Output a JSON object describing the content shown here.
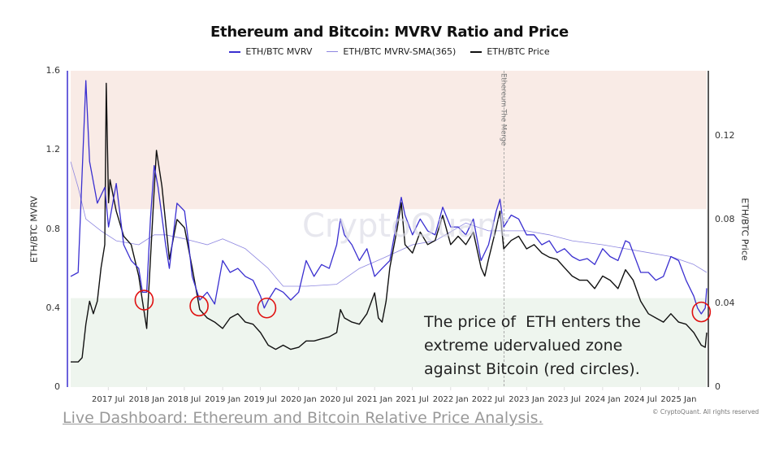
{
  "chart_data": {
    "type": "line",
    "title": "Ethereum and Bitcoin: MVRV Ratio and Price",
    "ylabel": "ETH/BTC MVRV",
    "y2label": "ETH/BTC Price",
    "ylim": [
      0,
      1.6
    ],
    "y2lim": [
      0,
      0.151
    ],
    "xlim": [
      "2017-01-01",
      "2025-05-16"
    ],
    "yticks": [
      "1.6",
      "1.2",
      "0.8",
      "0.4",
      "0"
    ],
    "y2ticks": [
      "0.12",
      "0.08",
      "0.04",
      "0"
    ],
    "xticks": [
      {
        "label": "2017 Jul",
        "date": "2017-07-01"
      },
      {
        "label": "2018 Jan",
        "date": "2018-01-01"
      },
      {
        "label": "2018 Jul",
        "date": "2018-07-01"
      },
      {
        "label": "2019 Jan",
        "date": "2019-01-01"
      },
      {
        "label": "2019 Jul",
        "date": "2019-07-01"
      },
      {
        "label": "2020 Jan",
        "date": "2020-01-01"
      },
      {
        "label": "2020 Jul",
        "date": "2020-07-01"
      },
      {
        "label": "2021 Jan",
        "date": "2021-01-01"
      },
      {
        "label": "2021 Jul",
        "date": "2021-07-01"
      },
      {
        "label": "2022 Jan",
        "date": "2022-01-01"
      },
      {
        "label": "2022 Jul",
        "date": "2022-07-01"
      },
      {
        "label": "2023 Jan",
        "date": "2023-01-01"
      },
      {
        "label": "2023 Jul",
        "date": "2023-07-01"
      },
      {
        "label": "2024 Jan",
        "date": "2024-01-01"
      },
      {
        "label": "2024 Jul",
        "date": "2024-07-01"
      },
      {
        "label": "2025 Jan",
        "date": "2025-01-01"
      }
    ],
    "grid": false,
    "legend_position": "top",
    "zones": [
      {
        "axis": "left",
        "from": 0.9,
        "to": 1.6,
        "color": "#f9ebe6"
      },
      {
        "axis": "left",
        "from": 0,
        "to": 0.45,
        "color": "#eef5ee"
      }
    ],
    "event": {
      "label": "Ethereum The Merge",
      "date": "2022-09-15"
    },
    "highlight_circles": [
      {
        "date": "2017-12-20",
        "mvrv": 0.44
      },
      {
        "date": "2018-09-10",
        "mvrv": 0.41
      },
      {
        "date": "2019-08-01",
        "mvrv": 0.4
      },
      {
        "date": "2025-04-20",
        "mvrv": 0.38
      }
    ],
    "series": [
      {
        "name": "ETH/BTC MVRV",
        "axis": "left",
        "color": "#3a2fd0",
        "width": 1.3,
        "points": [
          [
            "2017-01-01",
            0.56
          ],
          [
            "2017-02-06",
            0.58
          ],
          [
            "2017-03-15",
            1.55
          ],
          [
            "2017-04-02",
            1.14
          ],
          [
            "2017-05-09",
            0.93
          ],
          [
            "2017-06-14",
            1.01
          ],
          [
            "2017-07-02",
            0.81
          ],
          [
            "2017-08-08",
            1.03
          ],
          [
            "2017-09-13",
            0.72
          ],
          [
            "2017-10-19",
            0.64
          ],
          [
            "2017-11-24",
            0.6
          ],
          [
            "2017-12-12",
            0.48
          ],
          [
            "2018-01-01",
            0.48
          ],
          [
            "2018-01-19",
            0.85
          ],
          [
            "2018-02-06",
            1.12
          ],
          [
            "2018-02-25",
            1.01
          ],
          [
            "2018-04-02",
            0.72
          ],
          [
            "2018-04-20",
            0.6
          ],
          [
            "2018-05-27",
            0.93
          ],
          [
            "2018-07-02",
            0.89
          ],
          [
            "2018-07-20",
            0.74
          ],
          [
            "2018-08-08",
            0.56
          ],
          [
            "2018-09-13",
            0.44
          ],
          [
            "2018-10-19",
            0.48
          ],
          [
            "2018-11-24",
            0.42
          ],
          [
            "2019-01-01",
            0.64
          ],
          [
            "2019-02-06",
            0.58
          ],
          [
            "2019-03-15",
            0.6
          ],
          [
            "2019-04-20",
            0.56
          ],
          [
            "2019-05-27",
            0.54
          ],
          [
            "2019-07-02",
            0.46
          ],
          [
            "2019-07-20",
            0.4
          ],
          [
            "2019-08-08",
            0.44
          ],
          [
            "2019-09-13",
            0.5
          ],
          [
            "2019-10-19",
            0.48
          ],
          [
            "2019-11-24",
            0.44
          ],
          [
            "2020-01-01",
            0.48
          ],
          [
            "2020-02-06",
            0.64
          ],
          [
            "2020-03-15",
            0.56
          ],
          [
            "2020-04-20",
            0.62
          ],
          [
            "2020-05-27",
            0.6
          ],
          [
            "2020-07-02",
            0.72
          ],
          [
            "2020-07-20",
            0.85
          ],
          [
            "2020-08-08",
            0.77
          ],
          [
            "2020-09-13",
            0.72
          ],
          [
            "2020-10-19",
            0.64
          ],
          [
            "2020-11-24",
            0.7
          ],
          [
            "2021-01-01",
            0.56
          ],
          [
            "2021-02-06",
            0.6
          ],
          [
            "2021-03-15",
            0.64
          ],
          [
            "2021-04-20",
            0.85
          ],
          [
            "2021-05-09",
            0.96
          ],
          [
            "2021-05-27",
            0.87
          ],
          [
            "2021-07-02",
            0.77
          ],
          [
            "2021-08-08",
            0.85
          ],
          [
            "2021-09-13",
            0.79
          ],
          [
            "2021-10-19",
            0.77
          ],
          [
            "2021-11-24",
            0.91
          ],
          [
            "2022-01-01",
            0.81
          ],
          [
            "2022-02-06",
            0.81
          ],
          [
            "2022-03-15",
            0.77
          ],
          [
            "2022-04-20",
            0.85
          ],
          [
            "2022-05-27",
            0.64
          ],
          [
            "2022-07-02",
            0.72
          ],
          [
            "2022-08-08",
            0.89
          ],
          [
            "2022-08-26",
            0.95
          ],
          [
            "2022-09-13",
            0.81
          ],
          [
            "2022-10-19",
            0.87
          ],
          [
            "2022-11-24",
            0.85
          ],
          [
            "2023-01-01",
            0.77
          ],
          [
            "2023-02-06",
            0.77
          ],
          [
            "2023-03-15",
            0.72
          ],
          [
            "2023-04-20",
            0.74
          ],
          [
            "2023-05-27",
            0.68
          ],
          [
            "2023-07-02",
            0.7
          ],
          [
            "2023-08-08",
            0.66
          ],
          [
            "2023-09-13",
            0.64
          ],
          [
            "2023-10-19",
            0.65
          ],
          [
            "2023-11-24",
            0.62
          ],
          [
            "2024-01-01",
            0.7
          ],
          [
            "2024-02-06",
            0.66
          ],
          [
            "2024-03-15",
            0.64
          ],
          [
            "2024-04-20",
            0.74
          ],
          [
            "2024-05-09",
            0.73
          ],
          [
            "2024-05-27",
            0.68
          ],
          [
            "2024-07-02",
            0.58
          ],
          [
            "2024-08-08",
            0.58
          ],
          [
            "2024-09-13",
            0.54
          ],
          [
            "2024-10-19",
            0.56
          ],
          [
            "2024-11-24",
            0.66
          ],
          [
            "2025-01-01",
            0.64
          ],
          [
            "2025-02-06",
            0.54
          ],
          [
            "2025-03-15",
            0.46
          ],
          [
            "2025-04-02",
            0.4
          ],
          [
            "2025-04-20",
            0.37
          ],
          [
            "2025-05-09",
            0.4
          ],
          [
            "2025-05-16",
            0.5
          ]
        ]
      },
      {
        "name": "ETH/BTC MVRV-SMA(365)",
        "axis": "left",
        "color": "#8d86e0",
        "width": 0.8,
        "points": [
          [
            "2017-01-01",
            1.14
          ],
          [
            "2017-02-06",
            1.01
          ],
          [
            "2017-03-15",
            0.85
          ],
          [
            "2017-05-27",
            0.79
          ],
          [
            "2017-08-08",
            0.74
          ],
          [
            "2017-11-24",
            0.72
          ],
          [
            "2018-02-06",
            0.77
          ],
          [
            "2018-04-02",
            0.77
          ],
          [
            "2018-07-02",
            0.75
          ],
          [
            "2018-10-19",
            0.72
          ],
          [
            "2019-01-01",
            0.75
          ],
          [
            "2019-04-20",
            0.7
          ],
          [
            "2019-08-08",
            0.6
          ],
          [
            "2019-10-19",
            0.51
          ],
          [
            "2020-02-06",
            0.51
          ],
          [
            "2020-07-02",
            0.52
          ],
          [
            "2020-10-19",
            0.6
          ],
          [
            "2021-02-06",
            0.65
          ],
          [
            "2021-07-02",
            0.72
          ],
          [
            "2021-10-19",
            0.74
          ],
          [
            "2022-03-15",
            0.83
          ],
          [
            "2022-07-02",
            0.79
          ],
          [
            "2022-10-19",
            0.79
          ],
          [
            "2023-01-01",
            0.79
          ],
          [
            "2023-04-20",
            0.77
          ],
          [
            "2023-08-08",
            0.74
          ],
          [
            "2024-01-01",
            0.72
          ],
          [
            "2024-04-20",
            0.7
          ],
          [
            "2024-08-08",
            0.68
          ],
          [
            "2024-11-24",
            0.66
          ],
          [
            "2025-03-15",
            0.62
          ],
          [
            "2025-05-16",
            0.58
          ]
        ]
      },
      {
        "name": "ETH/BTC Price",
        "axis": "right",
        "color": "#111111",
        "width": 1.4,
        "points": [
          [
            "2017-01-01",
            0.012
          ],
          [
            "2017-02-06",
            0.012
          ],
          [
            "2017-02-25",
            0.014
          ],
          [
            "2017-03-15",
            0.03
          ],
          [
            "2017-04-02",
            0.041
          ],
          [
            "2017-04-20",
            0.035
          ],
          [
            "2017-05-09",
            0.041
          ],
          [
            "2017-05-27",
            0.057
          ],
          [
            "2017-06-14",
            0.068
          ],
          [
            "2017-06-21",
            0.145
          ],
          [
            "2017-07-02",
            0.088
          ],
          [
            "2017-07-09",
            0.099
          ],
          [
            "2017-08-08",
            0.084
          ],
          [
            "2017-09-13",
            0.072
          ],
          [
            "2017-10-19",
            0.068
          ],
          [
            "2017-11-24",
            0.053
          ],
          [
            "2017-12-12",
            0.041
          ],
          [
            "2018-01-01",
            0.028
          ],
          [
            "2018-01-19",
            0.061
          ],
          [
            "2018-02-06",
            0.094
          ],
          [
            "2018-02-17",
            0.113
          ],
          [
            "2018-03-15",
            0.096
          ],
          [
            "2018-04-20",
            0.061
          ],
          [
            "2018-05-27",
            0.08
          ],
          [
            "2018-07-02",
            0.076
          ],
          [
            "2018-08-08",
            0.057
          ],
          [
            "2018-09-13",
            0.037
          ],
          [
            "2018-10-19",
            0.033
          ],
          [
            "2018-11-24",
            0.031
          ],
          [
            "2019-01-01",
            0.028
          ],
          [
            "2019-02-06",
            0.033
          ],
          [
            "2019-03-15",
            0.035
          ],
          [
            "2019-04-20",
            0.031
          ],
          [
            "2019-05-27",
            0.03
          ],
          [
            "2019-07-02",
            0.026
          ],
          [
            "2019-08-08",
            0.02
          ],
          [
            "2019-09-13",
            0.018
          ],
          [
            "2019-10-19",
            0.02
          ],
          [
            "2019-11-24",
            0.018
          ],
          [
            "2020-01-01",
            0.019
          ],
          [
            "2020-02-06",
            0.022
          ],
          [
            "2020-03-15",
            0.022
          ],
          [
            "2020-04-20",
            0.023
          ],
          [
            "2020-05-27",
            0.024
          ],
          [
            "2020-07-02",
            0.026
          ],
          [
            "2020-07-20",
            0.037
          ],
          [
            "2020-08-08",
            0.033
          ],
          [
            "2020-09-13",
            0.031
          ],
          [
            "2020-10-19",
            0.03
          ],
          [
            "2020-11-24",
            0.035
          ],
          [
            "2021-01-01",
            0.045
          ],
          [
            "2021-01-19",
            0.033
          ],
          [
            "2021-02-06",
            0.031
          ],
          [
            "2021-02-25",
            0.041
          ],
          [
            "2021-03-15",
            0.057
          ],
          [
            "2021-04-20",
            0.076
          ],
          [
            "2021-05-09",
            0.088
          ],
          [
            "2021-05-27",
            0.068
          ],
          [
            "2021-07-02",
            0.064
          ],
          [
            "2021-08-08",
            0.074
          ],
          [
            "2021-09-13",
            0.068
          ],
          [
            "2021-10-19",
            0.07
          ],
          [
            "2021-11-24",
            0.082
          ],
          [
            "2022-01-01",
            0.068
          ],
          [
            "2022-02-06",
            0.072
          ],
          [
            "2022-03-15",
            0.068
          ],
          [
            "2022-04-20",
            0.074
          ],
          [
            "2022-05-27",
            0.057
          ],
          [
            "2022-06-14",
            0.053
          ],
          [
            "2022-07-02",
            0.061
          ],
          [
            "2022-08-08",
            0.076
          ],
          [
            "2022-08-26",
            0.084
          ],
          [
            "2022-09-13",
            0.066
          ],
          [
            "2022-10-19",
            0.07
          ],
          [
            "2022-11-24",
            0.072
          ],
          [
            "2023-01-01",
            0.066
          ],
          [
            "2023-02-06",
            0.068
          ],
          [
            "2023-03-15",
            0.064
          ],
          [
            "2023-04-20",
            0.062
          ],
          [
            "2023-05-27",
            0.061
          ],
          [
            "2023-07-02",
            0.057
          ],
          [
            "2023-08-08",
            0.053
          ],
          [
            "2023-09-13",
            0.051
          ],
          [
            "2023-10-19",
            0.051
          ],
          [
            "2023-11-24",
            0.047
          ],
          [
            "2024-01-01",
            0.053
          ],
          [
            "2024-02-06",
            0.051
          ],
          [
            "2024-03-15",
            0.047
          ],
          [
            "2024-04-20",
            0.056
          ],
          [
            "2024-05-27",
            0.051
          ],
          [
            "2024-07-02",
            0.041
          ],
          [
            "2024-08-08",
            0.035
          ],
          [
            "2024-09-13",
            0.033
          ],
          [
            "2024-10-19",
            0.031
          ],
          [
            "2024-11-24",
            0.035
          ],
          [
            "2025-01-01",
            0.031
          ],
          [
            "2025-02-06",
            0.03
          ],
          [
            "2025-03-15",
            0.026
          ],
          [
            "2025-04-20",
            0.02
          ],
          [
            "2025-05-09",
            0.019
          ],
          [
            "2025-05-16",
            0.026
          ]
        ]
      }
    ]
  },
  "annotation": {
    "text": "The price of  ETH enters the\nextreme udervalued zone\nagainst Bitcoin (red circles)."
  },
  "footer": {
    "link_text": "Live Dashboard: Ethereum and Bitcoin Relative Price Analysis.",
    "copyright": "© CryptoQuant. All rights reserved"
  },
  "watermark": "CryptoQuant",
  "colors": {
    "highlight_circle": "#e01010",
    "left_axis": "#3a2fd0",
    "right_axis": "#222222"
  }
}
